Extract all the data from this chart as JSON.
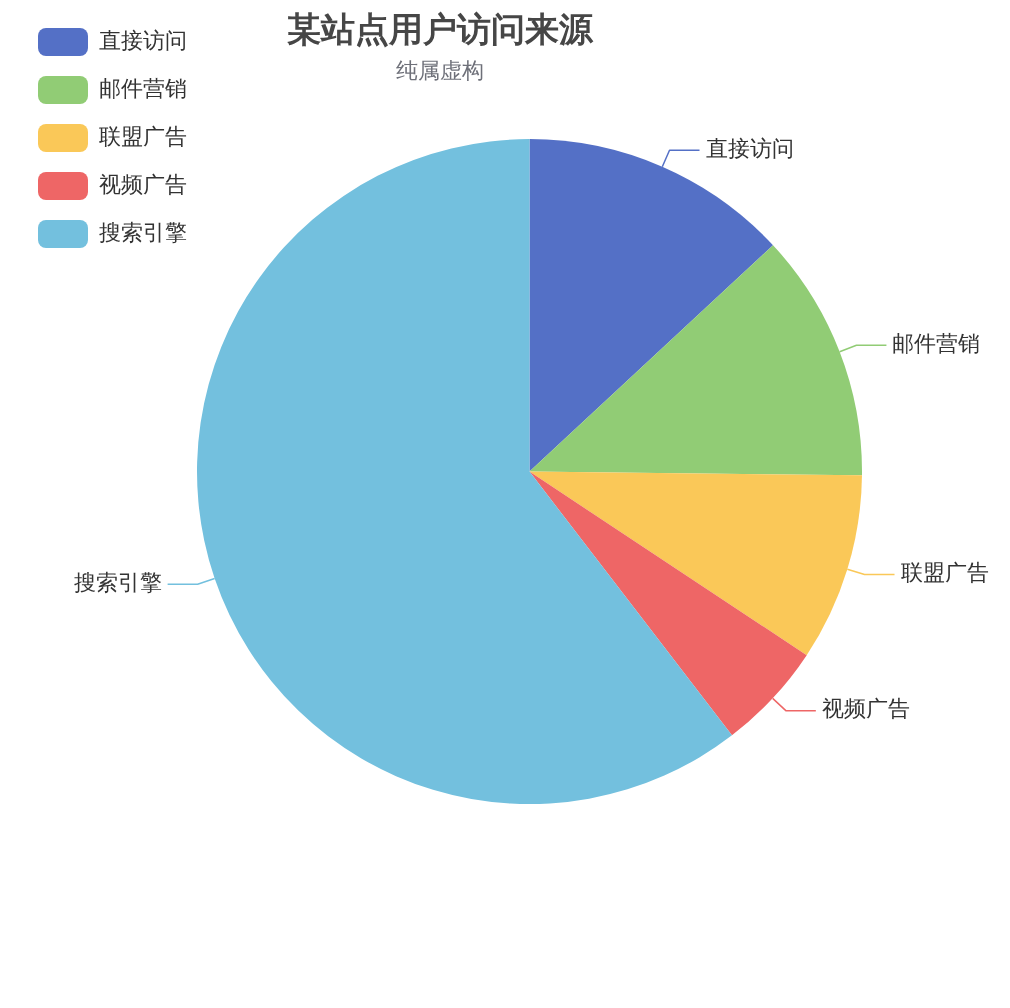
{
  "chart_data": {
    "type": "pie",
    "title": "某站点用户访问来源",
    "subtitle": "纯属虚构",
    "categories": [
      "直接访问",
      "邮件营销",
      "联盟广告",
      "视频广告",
      "搜索引擎"
    ],
    "values": [
      13.08,
      12.1,
      9.13,
      5.27,
      60.42
    ],
    "colors": [
      "#5470c6",
      "#91cc75",
      "#fac858",
      "#ee6666",
      "#73c0de"
    ],
    "legend": "top left"
  }
}
